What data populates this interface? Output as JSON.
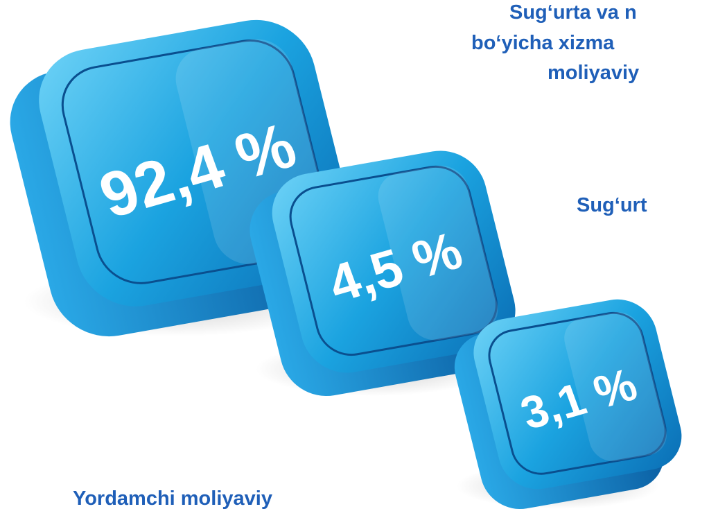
{
  "labels": {
    "top": [
      "Sug‘urta va n",
      "bo‘yicha xizma",
      "moliyaviy"
    ],
    "middle": "Sug‘urt",
    "bottom": "Yordamchi moliyaviy"
  },
  "boxes": [
    {
      "label": "92,4 %"
    },
    {
      "label": "4,5 %"
    },
    {
      "label": "3,1 %"
    }
  ]
}
